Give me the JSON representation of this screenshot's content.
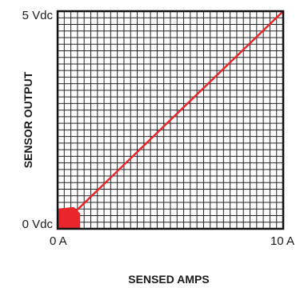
{
  "chart_data": {
    "type": "line",
    "title": "",
    "xlabel": "SENSED AMPS",
    "ylabel": "SENSOR OUTPUT",
    "xlim": [
      0,
      10
    ],
    "ylim": [
      0,
      5
    ],
    "grid": true,
    "x_ticks": [
      {
        "value": 0,
        "label": "0 A"
      },
      {
        "value": 10,
        "label": "10 A"
      }
    ],
    "y_ticks": [
      {
        "value": 0,
        "label": "0 Vdc"
      },
      {
        "value": 5,
        "label": "5 Vdc"
      }
    ],
    "series": [
      {
        "x": [
          0,
          10
        ],
        "y": [
          0,
          5
        ],
        "color": "#e8262b"
      }
    ],
    "zero_region": {
      "x": [
        0,
        1
      ],
      "y": [
        0,
        0.5
      ],
      "color": "#e8262b"
    }
  }
}
